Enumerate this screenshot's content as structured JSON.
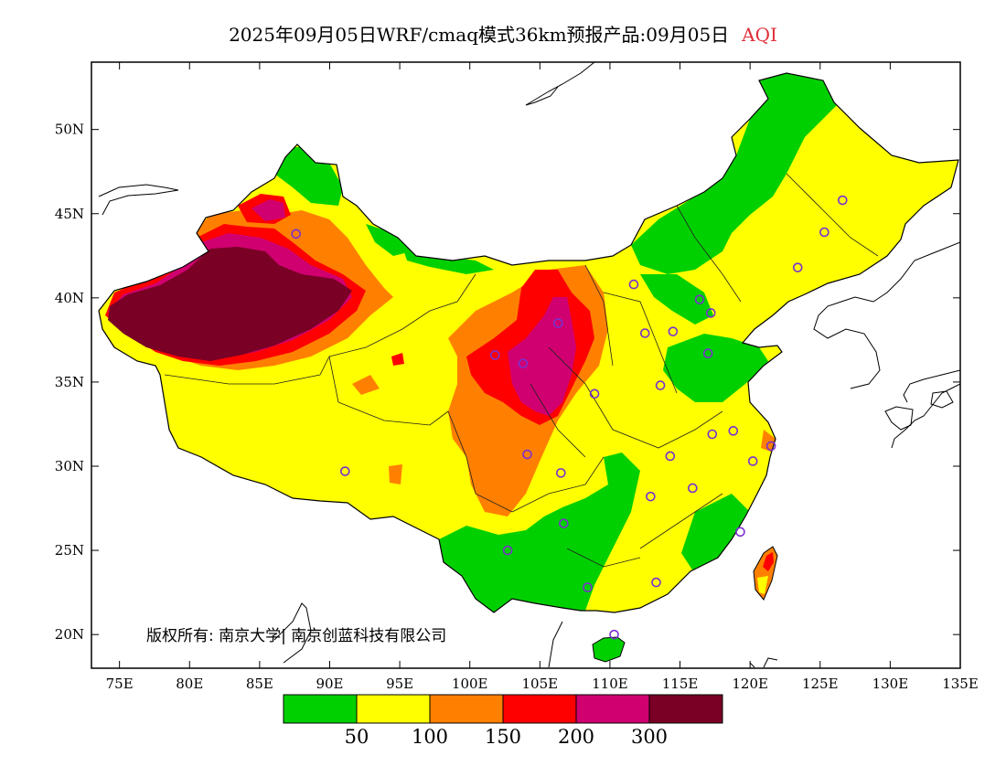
{
  "title": {
    "main": "2025年09月05日WRF/cmaq模式36km预报产品:09月05日",
    "variable": "AQI",
    "variable_color": "#e0303a"
  },
  "axes": {
    "lon_ticks": [
      "75E",
      "80E",
      "85E",
      "90E",
      "95E",
      "100E",
      "105E",
      "110E",
      "115E",
      "120E",
      "125E",
      "130E",
      "135E"
    ],
    "lat_ticks": [
      "20N",
      "25N",
      "30N",
      "35N",
      "40N",
      "45N",
      "50N"
    ],
    "lon_range": [
      73,
      135
    ],
    "lat_range": [
      18,
      54
    ]
  },
  "legend": {
    "colors": [
      "#00d000",
      "#ffff00",
      "#ff8000",
      "#ff0000",
      "#d00070",
      "#7a0025"
    ],
    "labels": [
      "50",
      "100",
      "150",
      "200",
      "300"
    ]
  },
  "copyright": "版权所有: 南京大学| 南京创蓝科技有限公司",
  "stations": [
    {
      "lon": 87.6,
      "lat": 43.8
    },
    {
      "lon": 91.1,
      "lat": 29.7
    },
    {
      "lon": 101.8,
      "lat": 36.6
    },
    {
      "lon": 103.8,
      "lat": 36.1
    },
    {
      "lon": 106.3,
      "lat": 38.5
    },
    {
      "lon": 104.1,
      "lat": 30.7
    },
    {
      "lon": 106.5,
      "lat": 29.6
    },
    {
      "lon": 106.7,
      "lat": 26.6
    },
    {
      "lon": 102.7,
      "lat": 25.0
    },
    {
      "lon": 108.4,
      "lat": 22.8
    },
    {
      "lon": 110.3,
      "lat": 20.0
    },
    {
      "lon": 113.3,
      "lat": 23.1
    },
    {
      "lon": 108.9,
      "lat": 34.3
    },
    {
      "lon": 111.7,
      "lat": 40.8
    },
    {
      "lon": 112.5,
      "lat": 37.9
    },
    {
      "lon": 114.5,
      "lat": 38.0
    },
    {
      "lon": 116.4,
      "lat": 39.9
    },
    {
      "lon": 117.2,
      "lat": 39.1
    },
    {
      "lon": 117.0,
      "lat": 36.7
    },
    {
      "lon": 113.6,
      "lat": 34.8
    },
    {
      "lon": 114.3,
      "lat": 30.6
    },
    {
      "lon": 112.9,
      "lat": 28.2
    },
    {
      "lon": 115.9,
      "lat": 28.7
    },
    {
      "lon": 117.3,
      "lat": 31.9
    },
    {
      "lon": 118.8,
      "lat": 32.1
    },
    {
      "lon": 120.2,
      "lat": 30.3
    },
    {
      "lon": 121.5,
      "lat": 31.2
    },
    {
      "lon": 119.3,
      "lat": 26.1
    },
    {
      "lon": 123.4,
      "lat": 41.8
    },
    {
      "lon": 125.3,
      "lat": 43.9
    },
    {
      "lon": 126.6,
      "lat": 45.8
    }
  ]
}
